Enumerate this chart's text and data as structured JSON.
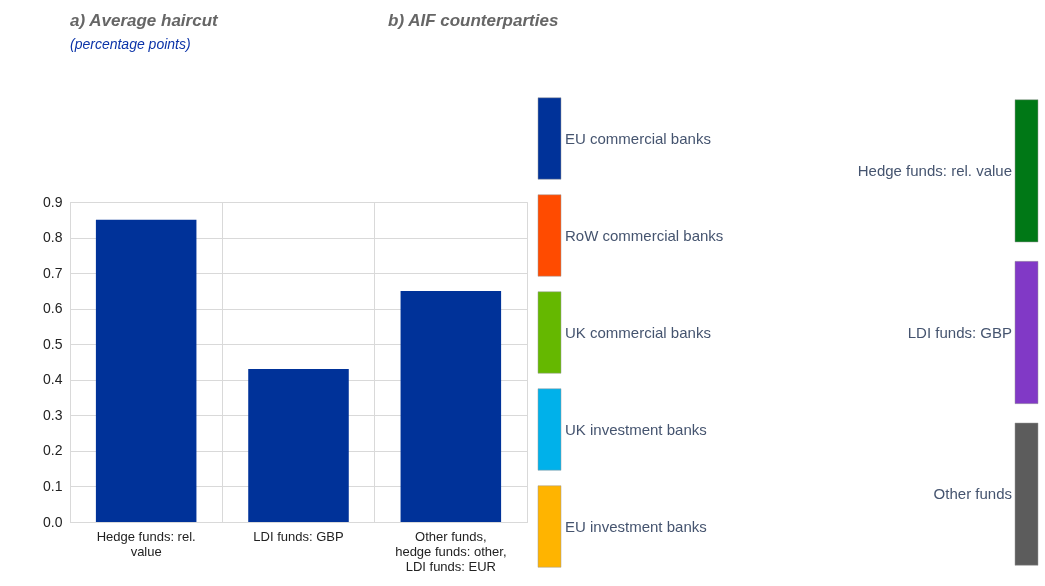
{
  "chart_data": [
    {
      "type": "bar",
      "title": "a) Average haircut",
      "subtitle": "(percentage points)",
      "categories": [
        "Hedge funds: rel. value",
        "LDI funds: GBP",
        "Other funds, hedge funds: other, LDI funds: EUR"
      ],
      "values": [
        0.85,
        0.43,
        0.65
      ],
      "color": "#003299",
      "ylim": [
        0,
        0.9
      ],
      "yticks": [
        {
          "value": 0,
          "label": "0.0"
        },
        0.1,
        0.2,
        0.3,
        0.4,
        0.5,
        0.6,
        0.7,
        0.8,
        0.9
      ],
      "grid": true
    },
    {
      "type": "other",
      "title": "b) AIF counterparties",
      "categories": [
        "EU commercial banks",
        "RoW commercial banks",
        "UK commercial banks",
        "UK investment banks",
        "EU investment banks"
      ],
      "y_categories": [
        "Hedge funds: rel. value",
        "LDI funds: GBP",
        "Other funds"
      ],
      "colors": [
        "#003299",
        "#ff4b00",
        "#65b800",
        "#00b1ea",
        "#ffb400",
        "#007816",
        "#8139c6",
        "#5c5c5c"
      ]
    }
  ]
}
